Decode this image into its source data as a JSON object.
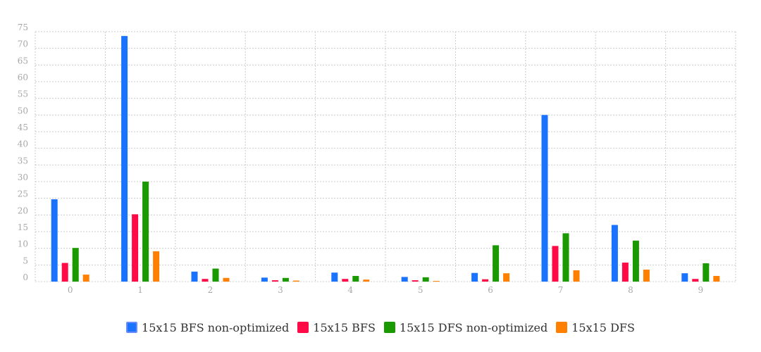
{
  "chart_data": {
    "type": "bar",
    "categories": [
      "0",
      "1",
      "2",
      "3",
      "4",
      "5",
      "6",
      "7",
      "8",
      "9"
    ],
    "series": [
      {
        "name": "15x15 BFS non-optimized",
        "color": "#1a73ff",
        "values": [
          24.7,
          73.7,
          3.0,
          1.2,
          2.7,
          1.4,
          2.6,
          50.0,
          17.0,
          2.5
        ]
      },
      {
        "name": "15x15 BFS",
        "color": "#ff0a46",
        "values": [
          5.6,
          20.2,
          0.8,
          0.4,
          0.8,
          0.4,
          0.7,
          10.7,
          5.7,
          0.8
        ]
      },
      {
        "name": "15x15 DFS non-optimized",
        "color": "#1a9a00",
        "values": [
          10.1,
          30.0,
          3.9,
          1.1,
          1.7,
          1.3,
          10.9,
          14.5,
          12.3,
          5.5
        ]
      },
      {
        "name": "15x15 DFS",
        "color": "#ff7f00",
        "values": [
          2.1,
          9.1,
          1.1,
          0.3,
          0.6,
          0.2,
          2.5,
          3.4,
          3.6,
          1.7
        ]
      }
    ],
    "yticks": [
      "0",
      "5",
      "10",
      "15",
      "20",
      "25",
      "30",
      "35",
      "40",
      "45",
      "50",
      "55",
      "60",
      "65",
      "70",
      "75"
    ],
    "ylim": [
      0,
      75
    ],
    "grid": true,
    "legend_position": "bottom-center"
  }
}
